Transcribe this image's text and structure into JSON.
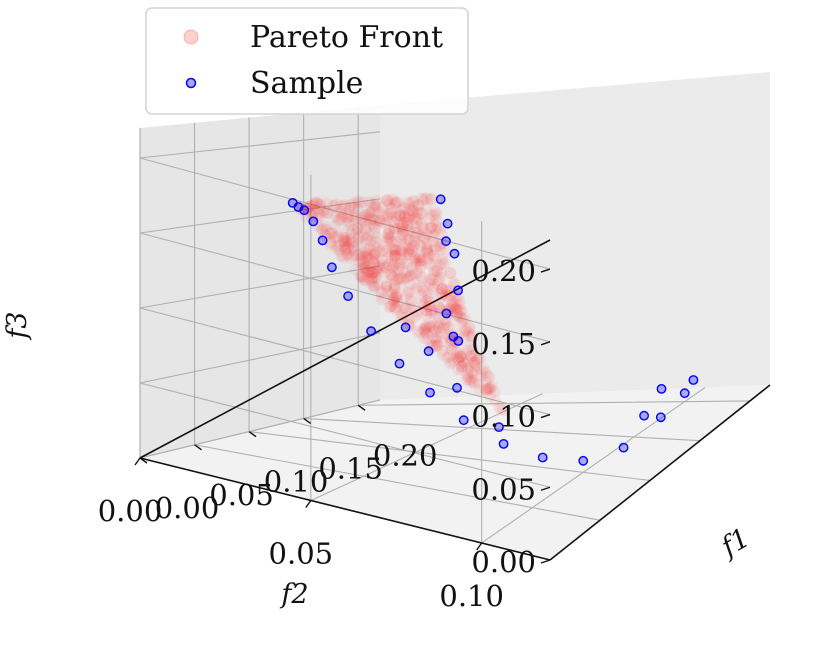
{
  "chart_data": {
    "type": "scatter",
    "projection": "3d",
    "xlabel": "f1",
    "ylabel": "f2",
    "zlabel": "f3",
    "xlim": [
      0,
      0.22
    ],
    "ylim": [
      0,
      0.12
    ],
    "zlim": [
      0,
      0.22
    ],
    "x_ticks": [
      "0.00",
      "0.05",
      "0.10",
      "0.15",
      "0.20"
    ],
    "y_ticks": [
      "0.00",
      "0.05",
      "0.10"
    ],
    "z_ticks": [
      "0.00",
      "0.05",
      "0.10",
      "0.15",
      "0.20"
    ],
    "grid": true,
    "legend_position": "top-left",
    "series": [
      {
        "name": "Pareto Front",
        "color": "#ff0000",
        "marker": "filled-circle-translucent",
        "description_region": [
          {
            "f1": 0.14,
            "f2": 0.0,
            "f3": 0.156
          },
          {
            "f1": 0.02,
            "f2": 0.08,
            "f3": 0.216
          },
          {
            "f1": 0.07,
            "f2": 0.086,
            "f3": 0.05
          }
        ]
      },
      {
        "name": "Sample",
        "color": "#0000ff",
        "marker": "hollow-circle",
        "points": [
          {
            "f1": 0.14,
            "f2": 0.0,
            "f3": 0.156
          },
          {
            "f1": 0.13,
            "f2": 0.005,
            "f3": 0.155
          },
          {
            "f1": 0.12,
            "f2": 0.01,
            "f3": 0.155
          },
          {
            "f1": 0.11,
            "f2": 0.016,
            "f3": 0.15
          },
          {
            "f1": 0.1,
            "f2": 0.022,
            "f3": 0.14
          },
          {
            "f1": 0.09,
            "f2": 0.028,
            "f3": 0.125
          },
          {
            "f1": 0.08,
            "f2": 0.036,
            "f3": 0.11
          },
          {
            "f1": 0.07,
            "f2": 0.046,
            "f3": 0.092
          },
          {
            "f1": 0.065,
            "f2": 0.056,
            "f3": 0.075
          },
          {
            "f1": 0.062,
            "f2": 0.066,
            "f3": 0.06
          },
          {
            "f1": 0.062,
            "f2": 0.076,
            "f3": 0.045
          },
          {
            "f1": 0.068,
            "f2": 0.086,
            "f3": 0.03
          },
          {
            "f1": 0.08,
            "f2": 0.094,
            "f3": 0.018
          },
          {
            "f1": 0.1,
            "f2": 0.1,
            "f3": 0.008
          },
          {
            "f1": 0.13,
            "f2": 0.103,
            "f3": 0.003
          },
          {
            "f1": 0.17,
            "f2": 0.102,
            "f3": 0.004
          },
          {
            "f1": 0.2,
            "f2": 0.1,
            "f3": 0.006
          },
          {
            "f1": 0.215,
            "f2": 0.098,
            "f3": 0.008
          },
          {
            "f1": 0.08,
            "f2": 0.06,
            "f3": 0.08
          },
          {
            "f1": 0.09,
            "f2": 0.05,
            "f3": 0.09
          },
          {
            "f1": 0.075,
            "f2": 0.07,
            "f3": 0.06
          },
          {
            "f1": 0.06,
            "f2": 0.075,
            "f3": 0.1
          },
          {
            "f1": 0.05,
            "f2": 0.078,
            "f3": 0.14
          },
          {
            "f1": 0.04,
            "f2": 0.08,
            "f3": 0.17
          },
          {
            "f1": 0.03,
            "f2": 0.081,
            "f3": 0.195
          },
          {
            "f1": 0.02,
            "f2": 0.082,
            "f3": 0.216
          },
          {
            "f1": 0.035,
            "f2": 0.079,
            "f3": 0.18
          },
          {
            "f1": 0.055,
            "f2": 0.073,
            "f3": 0.12
          },
          {
            "f1": 0.065,
            "f2": 0.072,
            "f3": 0.1
          },
          {
            "f1": 0.07,
            "f2": 0.084,
            "f3": 0.04
          },
          {
            "f1": 0.16,
            "f2": 0.1,
            "f3": 0.01
          },
          {
            "f1": 0.19,
            "f2": 0.096,
            "f3": 0.014
          }
        ]
      }
    ]
  }
}
